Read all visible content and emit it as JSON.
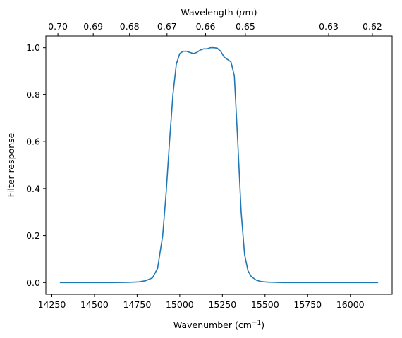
{
  "chart_data": {
    "type": "line",
    "xlabel": "Wavenumber (cm",
    "xlabel_superscript": "−1",
    "xlabel_close": ")",
    "ylabel": "Filter response",
    "top_axis_label_prefix": "Wavelength (",
    "top_axis_label_mu": "μ",
    "top_axis_label_suffix": "m)",
    "xlim": [
      14215,
      16245
    ],
    "ylim": [
      -0.05,
      1.05
    ],
    "x_ticks": [
      {
        "value": 14250,
        "label": "14250"
      },
      {
        "value": 14500,
        "label": "14500"
      },
      {
        "value": 14750,
        "label": "14750"
      },
      {
        "value": 15000,
        "label": "15000"
      },
      {
        "value": 15250,
        "label": "15250"
      },
      {
        "value": 15500,
        "label": "15500"
      },
      {
        "value": 15750,
        "label": "15750"
      },
      {
        "value": 16000,
        "label": "16000"
      }
    ],
    "y_ticks": [
      {
        "value": 0.0,
        "label": "0.0"
      },
      {
        "value": 0.2,
        "label": "0.2"
      },
      {
        "value": 0.4,
        "label": "0.4"
      },
      {
        "value": 0.6,
        "label": "0.6"
      },
      {
        "value": 0.8,
        "label": "0.8"
      },
      {
        "value": 1.0,
        "label": "1.0"
      }
    ],
    "top_ticks": [
      {
        "value": 0.7,
        "label": "0.70"
      },
      {
        "value": 0.69,
        "label": "0.69"
      },
      {
        "value": 0.68,
        "label": "0.68"
      },
      {
        "value": 0.67,
        "label": "0.67"
      },
      {
        "value": 0.66,
        "label": "0.66"
      },
      {
        "value": 0.65,
        "label": "0.65"
      },
      {
        "value": 0.63,
        "label": "0.63"
      },
      {
        "value": 0.62,
        "label": "0.62"
      }
    ],
    "grid": false,
    "series": [
      {
        "color": "#1f77b4",
        "x": [
          14300,
          14400,
          14500,
          14600,
          14700,
          14760,
          14800,
          14840,
          14870,
          14900,
          14920,
          14940,
          14960,
          14980,
          15000,
          15020,
          15040,
          15060,
          15080,
          15100,
          15120,
          15140,
          15160,
          15180,
          15200,
          15220,
          15240,
          15260,
          15280,
          15300,
          15320,
          15340,
          15360,
          15380,
          15400,
          15420,
          15450,
          15480,
          15520,
          15560,
          15600,
          15700,
          15800,
          15900,
          16000,
          16100,
          16160
        ],
        "y": [
          0.0,
          0.0,
          0.0,
          0.0,
          0.001,
          0.003,
          0.008,
          0.02,
          0.06,
          0.2,
          0.38,
          0.6,
          0.8,
          0.93,
          0.975,
          0.985,
          0.985,
          0.98,
          0.975,
          0.98,
          0.99,
          0.995,
          0.995,
          1.0,
          1.0,
          0.998,
          0.985,
          0.96,
          0.95,
          0.94,
          0.88,
          0.6,
          0.3,
          0.12,
          0.05,
          0.025,
          0.01,
          0.004,
          0.002,
          0.001,
          0.0,
          0.0,
          0.0,
          0.0,
          0.0,
          0.0,
          0.0
        ]
      }
    ]
  }
}
